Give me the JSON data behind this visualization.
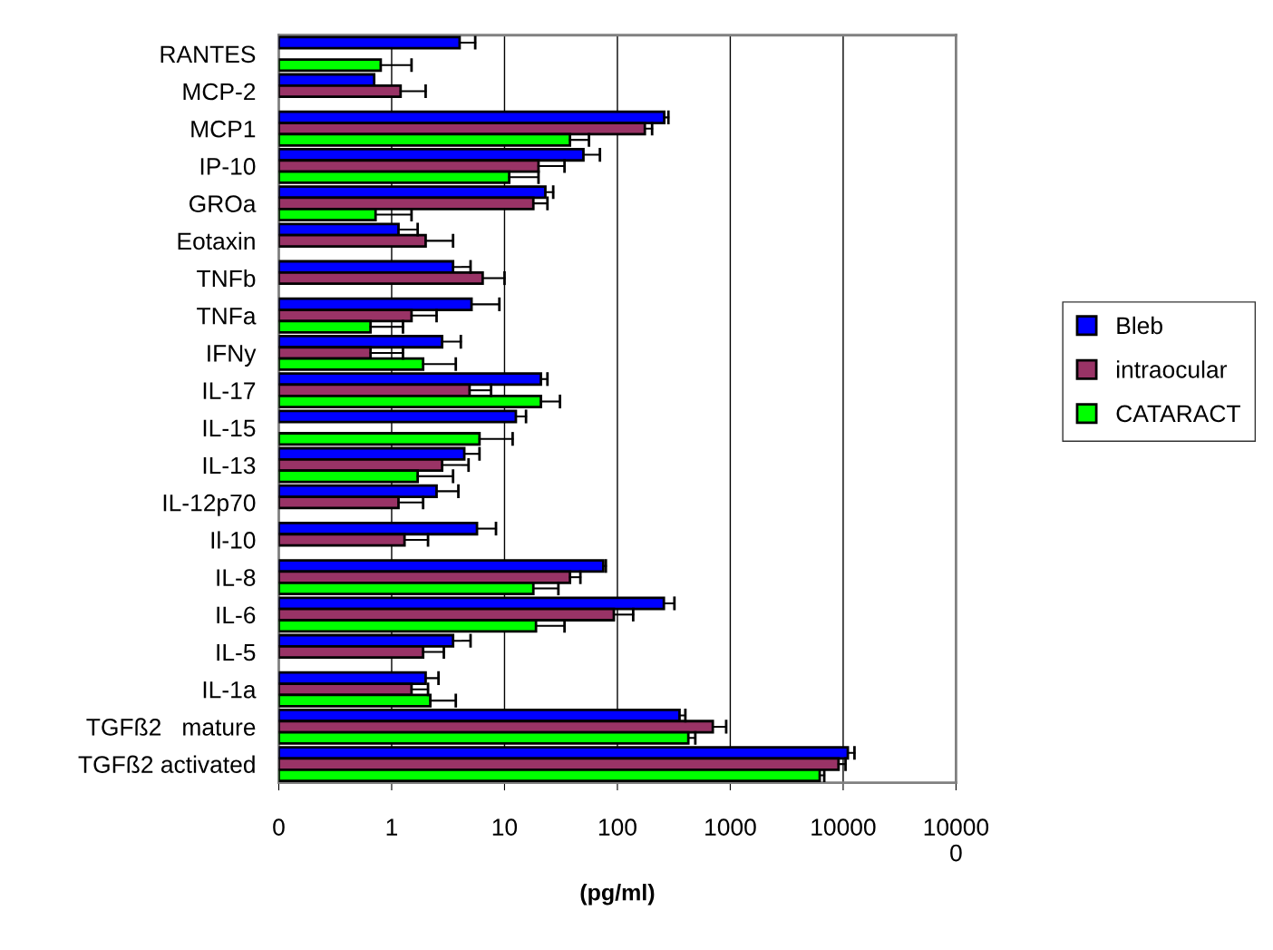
{
  "chart_data": {
    "type": "bar",
    "orientation": "horizontal",
    "log": "x",
    "xlabel": "(pg/ml)",
    "categories": [
      "RANTES",
      "MCP-2",
      "MCP1",
      "IP-10",
      "GROa",
      "Eotaxin",
      "TNFb",
      "TNFa",
      "IFNy",
      "IL-17",
      "IL-15",
      "IL-13",
      "IL-12p70",
      "Il-10",
      "IL-8",
      "IL-6",
      "IL-5",
      "IL-1a",
      "TGFß2   mature",
      "TGFß2 activated"
    ],
    "series": [
      {
        "name": "Bleb",
        "color": "#0000ff",
        "values": [
          4,
          0.7,
          260,
          50,
          23,
          1.15,
          3.5,
          5.1,
          2.8,
          21,
          12.6,
          4.4,
          2.5,
          5.7,
          75,
          258,
          3.5,
          2.0,
          355,
          11000
        ],
        "errors": [
          [
            4,
            5.5
          ],
          null,
          [
            260,
            283
          ],
          [
            50,
            70
          ],
          [
            23,
            27
          ],
          [
            1.15,
            1.7
          ],
          [
            3.5,
            5.0
          ],
          [
            5.1,
            9
          ],
          [
            2.8,
            4.1
          ],
          [
            21,
            24
          ],
          [
            12.6,
            15.5
          ],
          [
            4.4,
            6.0
          ],
          [
            2.5,
            3.9
          ],
          [
            5.7,
            8.4
          ],
          [
            75,
            79
          ],
          [
            258,
            320
          ],
          [
            3.5,
            5.0
          ],
          [
            2.0,
            2.6
          ],
          [
            355,
            400
          ],
          [
            11000,
            12600
          ]
        ]
      },
      {
        "name": "intraocular",
        "color": "#993366",
        "values": [
          null,
          1.2,
          175,
          20,
          18,
          2.0,
          6.4,
          1.5,
          0.65,
          4.9,
          null,
          2.8,
          1.15,
          1.3,
          38,
          93,
          1.9,
          1.5,
          700,
          9100
        ],
        "errors": [
          null,
          [
            1.2,
            2.0
          ],
          [
            175,
            203
          ],
          [
            20,
            34
          ],
          [
            18,
            24
          ],
          [
            2.0,
            3.5
          ],
          [
            6.4,
            10
          ],
          [
            1.5,
            2.5
          ],
          [
            0.65,
            1.26
          ],
          [
            4.9,
            7.6
          ],
          null,
          [
            2.8,
            4.8
          ],
          [
            1.15,
            1.9
          ],
          [
            1.3,
            2.1
          ],
          [
            38,
            47
          ],
          [
            93,
            138
          ],
          [
            1.9,
            2.9
          ],
          [
            1.5,
            2.1
          ],
          [
            700,
            920
          ],
          [
            9100,
            10500
          ]
        ]
      },
      {
        "name": "CATARACT",
        "color": "#00ff00",
        "values": [
          0.8,
          null,
          38,
          11,
          0.72,
          null,
          null,
          0.65,
          1.9,
          21,
          6.0,
          1.7,
          null,
          null,
          18,
          19,
          null,
          2.2,
          425,
          6200
        ],
        "errors": [
          [
            0.8,
            1.5
          ],
          null,
          [
            38,
            56
          ],
          [
            11,
            20
          ],
          [
            0.72,
            1.5
          ],
          null,
          null,
          [
            0.65,
            1.26
          ],
          [
            1.9,
            3.7
          ],
          [
            21,
            31
          ],
          [
            6.0,
            11.8
          ],
          [
            1.7,
            3.5
          ],
          null,
          null,
          [
            18,
            30
          ],
          [
            19,
            34
          ],
          null,
          [
            2.2,
            3.7
          ],
          [
            425,
            490
          ],
          [
            6200,
            6800
          ]
        ]
      }
    ],
    "xlim": [
      0.1,
      100000
    ],
    "xticks": [
      {
        "value": 0.1,
        "label": "0"
      },
      1,
      10,
      100,
      1000,
      10000,
      {
        "value": 100000,
        "label": "10000\n0"
      }
    ],
    "grid": "x",
    "legend": "right"
  }
}
